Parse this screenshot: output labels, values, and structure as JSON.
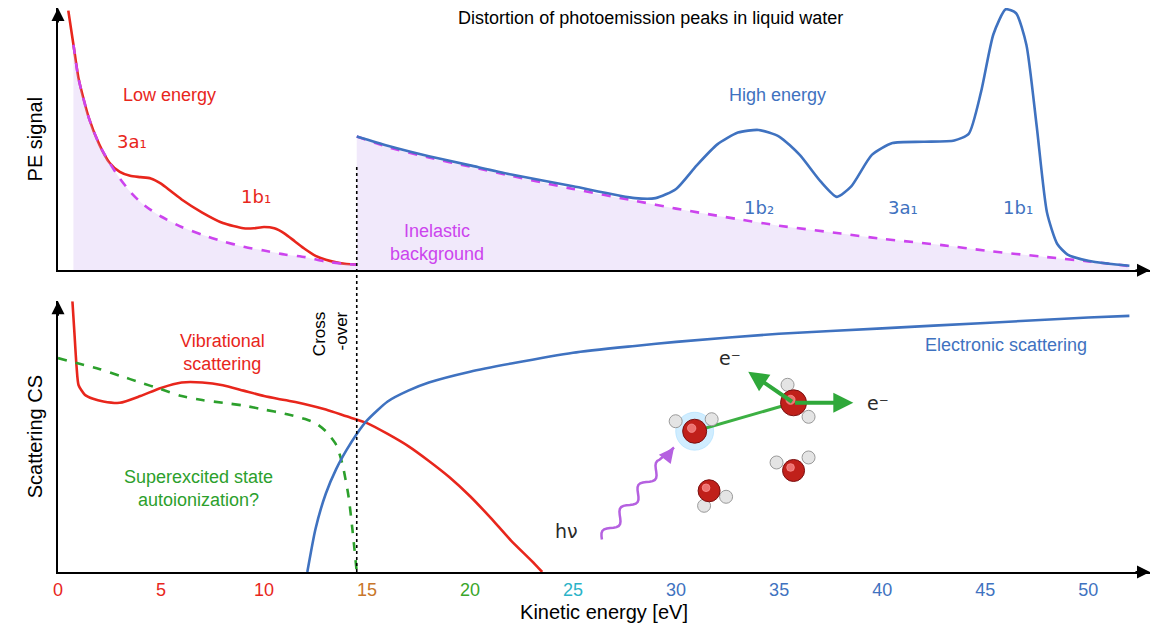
{
  "chart_data": [
    {
      "type": "line",
      "title": "Distortion of photoemission peaks in liquid water",
      "y_label": "PE signal",
      "xlim": [
        0,
        53
      ],
      "ylim": [
        0,
        100
      ],
      "grid": false,
      "tick_labels": false,
      "series": [
        {
          "name": "Low energy",
          "color": "#e8261c",
          "line_style": "solid",
          "x": [
            0.5,
            0.75,
            1,
            1.5,
            2,
            2.5,
            3,
            3.5,
            4,
            4.5,
            5,
            5.5,
            6,
            7,
            8,
            9,
            9.5,
            10,
            10.5,
            11,
            11.5,
            12,
            12.5,
            13,
            13.5,
            14,
            14.5
          ],
          "values": [
            99,
            86,
            73,
            58,
            48,
            41,
            37.5,
            36,
            35.5,
            35,
            33,
            30,
            27,
            22,
            18,
            16,
            16,
            16.5,
            16,
            14,
            11,
            8,
            5.5,
            4,
            3,
            2.4,
            2.2
          ],
          "label_at": [
            5.4,
            67
          ],
          "annotations": [
            {
              "text": "3a₁",
              "x": 3.6,
              "y": 49
            },
            {
              "text": "1b₁",
              "x": 9.6,
              "y": 28
            }
          ]
        },
        {
          "name": "Inelastic\nbackground",
          "color": "#cc44ee",
          "line_style": "dash",
          "x": [
            0.75,
            1,
            1.5,
            2,
            2.5,
            3,
            3.5,
            4,
            4.5,
            5,
            6,
            7,
            8,
            9,
            10,
            11,
            12,
            13,
            14,
            14.5,
            14.5,
            14.5,
            16,
            18,
            20,
            22,
            25,
            28,
            30,
            33,
            35,
            38,
            40,
            43,
            45,
            48,
            50,
            52
          ],
          "values": [
            86,
            73,
            58,
            48,
            41,
            35,
            30,
            26,
            23,
            20.5,
            16.5,
            13.5,
            11,
            9,
            7.5,
            6,
            5,
            3.3,
            2.4,
            2.2,
            null,
            51,
            47,
            43,
            39.5,
            36,
            31,
            26.5,
            23.5,
            19.5,
            17,
            14,
            12,
            9.5,
            7.5,
            5,
            3.4,
            1.6
          ],
          "label_at": [
            18.4,
            10.5
          ]
        },
        {
          "name": "High energy",
          "color": "#3f72c0",
          "line_style": "solid",
          "x": [
            14.5,
            16,
            18,
            20,
            22,
            25,
            28,
            29,
            30,
            31,
            32,
            33,
            34,
            35,
            36,
            37,
            37.8,
            38.5,
            39.5,
            40.5,
            42,
            43.5,
            44.2,
            44.8,
            45.4,
            46,
            46.5,
            47,
            47.5,
            48,
            48.5,
            49,
            50,
            51,
            52
          ],
          "values": [
            51,
            47.5,
            43.5,
            40,
            36.5,
            32,
            27.5,
            27.5,
            31,
            40,
            48,
            52.5,
            53.5,
            51,
            44,
            34,
            28,
            32,
            44,
            48.5,
            49,
            49.5,
            52,
            68,
            90,
            99.5,
            98,
            86,
            55,
            22,
            10,
            6,
            3.6,
            2.5,
            1.7
          ],
          "label_at": [
            34.9,
            67
          ],
          "annotations": [
            {
              "text": "1b₂",
              "x": 34,
              "y": 24
            },
            {
              "text": "3a₁",
              "x": 41,
              "y": 24
            },
            {
              "text": "1b₁",
              "x": 46.6,
              "y": 24
            }
          ]
        }
      ]
    },
    {
      "type": "line",
      "x_label": "Kinetic energy [eV]",
      "y_label": "Scattering CS",
      "xlim": [
        0,
        53
      ],
      "ylim": [
        0,
        100
      ],
      "xticks": [
        0,
        5,
        10,
        15,
        20,
        25,
        30,
        35,
        40,
        45,
        50
      ],
      "grid": false,
      "tick_labels": "x",
      "crossover": {
        "x": 14.5,
        "text": "Cross\n-over"
      },
      "series": [
        {
          "name": "Vibrational\nscattering",
          "color": "#e8261c",
          "line_style": "solid",
          "x": [
            0.7,
            0.8,
            0.9,
            1,
            1.3,
            1.7,
            2.2,
            3,
            4,
            5,
            6,
            7,
            8,
            9,
            10,
            11,
            12,
            13,
            14,
            15,
            16,
            17,
            18,
            19,
            20,
            21,
            22,
            23,
            23.5
          ],
          "values": [
            100,
            88,
            76,
            69,
            65.5,
            64,
            63,
            62.5,
            65,
            68,
            70,
            70,
            69,
            67,
            65,
            63.5,
            62,
            60,
            57.5,
            55,
            51,
            46.5,
            41,
            35,
            28,
            20,
            11.5,
            4,
            0
          ],
          "label_at": [
            8,
            81
          ]
        },
        {
          "name": "Superexcited state\nautoionization?",
          "color": "#2ca02c",
          "line_style": "dash",
          "x": [
            0,
            1,
            2,
            3,
            4,
            5,
            6,
            7,
            8,
            9,
            10,
            11,
            12,
            12.5,
            13,
            13.5,
            13.8,
            14.1,
            14.3,
            14.5
          ],
          "values": [
            79,
            77,
            75,
            72.5,
            70,
            67.5,
            65,
            63.5,
            62.5,
            61.5,
            60,
            58.5,
            56.5,
            55,
            52,
            47,
            40,
            28,
            15,
            0
          ],
          "label_at": [
            6.8,
            31
          ]
        },
        {
          "name": "Electronic scattering",
          "color": "#3f72c0",
          "line_style": "solid",
          "x": [
            12.1,
            12.5,
            13,
            13.5,
            14,
            14.5,
            15,
            16,
            17,
            18,
            20,
            22,
            25,
            28,
            30,
            35,
            40,
            45,
            50,
            52
          ],
          "values": [
            0,
            16,
            29,
            38,
            45,
            51,
            56,
            63,
            67,
            70,
            74,
            77,
            81,
            83.5,
            85,
            88,
            90,
            92,
            94,
            94.6
          ],
          "label_at": [
            46,
            84
          ]
        }
      ],
      "annotations": [
        {
          "text": "hν",
          "x": 24.7,
          "y": 15
        },
        {
          "text": "e⁻",
          "x": 32.6,
          "y": 79
        },
        {
          "text": "e⁻",
          "x": 39.8,
          "y": 62.5
        }
      ]
    }
  ]
}
